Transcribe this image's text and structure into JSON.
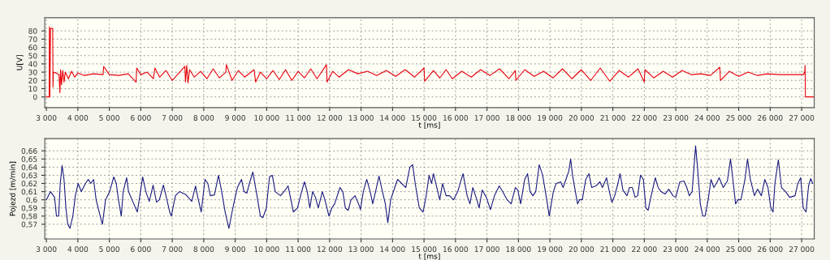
{
  "chart_data": [
    {
      "type": "line",
      "xlabel": "t [ms]",
      "ylabel": "U[V]",
      "grid": true,
      "line_style": "solid",
      "xlim": [
        2950,
        27400
      ],
      "ylim": [
        -13,
        96
      ],
      "xticks": [
        {
          "value": 3000,
          "label": "3 000"
        },
        {
          "value": 4000,
          "label": "4 000"
        },
        {
          "value": 5000,
          "label": "5 000"
        },
        {
          "value": 6000,
          "label": "6 000"
        },
        {
          "value": 7000,
          "label": "7 000"
        },
        {
          "value": 8000,
          "label": "8 000"
        },
        {
          "value": 9000,
          "label": "9 000"
        },
        {
          "value": 10000,
          "label": "10 000"
        },
        {
          "value": 11000,
          "label": "11 000"
        },
        {
          "value": 12000,
          "label": "12 000"
        },
        {
          "value": 13000,
          "label": "13 000"
        },
        {
          "value": 14000,
          "label": "14 000"
        },
        {
          "value": 15000,
          "label": "15 000"
        },
        {
          "value": 16000,
          "label": "16 000"
        },
        {
          "value": 17000,
          "label": "17 000"
        },
        {
          "value": 18000,
          "label": "18 000"
        },
        {
          "value": 19000,
          "label": "19 000"
        },
        {
          "value": 20000,
          "label": "20 000"
        },
        {
          "value": 21000,
          "label": "21 000"
        },
        {
          "value": 22000,
          "label": "22 000"
        },
        {
          "value": 23000,
          "label": "23 000"
        },
        {
          "value": 24000,
          "label": "24 000"
        },
        {
          "value": 25000,
          "label": "25 000"
        },
        {
          "value": 26000,
          "label": "26 000"
        },
        {
          "value": 27000,
          "label": "27 000"
        }
      ],
      "yticks": [
        0,
        10,
        20,
        30,
        40,
        50,
        60,
        70,
        80
      ],
      "series": [
        {
          "color": "#e8000b",
          "x": [
            3000,
            3090,
            3095,
            3110,
            3130,
            3200,
            3210,
            3220,
            3300,
            3400,
            3430,
            3450,
            3480,
            3520,
            3560,
            3600,
            3700,
            3800,
            3900,
            4000,
            4200,
            4500,
            4800,
            4820,
            5000,
            5300,
            5600,
            5850,
            5870,
            6000,
            6200,
            6400,
            6450,
            6600,
            6800,
            7000,
            7400,
            7420,
            7460,
            7500,
            7550,
            7700,
            7900,
            8100,
            8300,
            8500,
            8700,
            8720,
            8900,
            9100,
            9300,
            9600,
            9650,
            9800,
            10000,
            10200,
            10400,
            10600,
            10800,
            11000,
            11200,
            11400,
            11600,
            11900,
            11920,
            12100,
            12300,
            12600,
            12900,
            13200,
            13500,
            13800,
            14100,
            14400,
            14700,
            15000,
            15020,
            15300,
            15500,
            15700,
            15900,
            16200,
            16500,
            16800,
            17100,
            17400,
            17700,
            17900,
            17920,
            18200,
            18500,
            18800,
            19100,
            19400,
            19700,
            20000,
            20300,
            20600,
            20900,
            21200,
            21500,
            21800,
            22000,
            22020,
            22300,
            22600,
            22900,
            23200,
            23500,
            23800,
            24100,
            24400,
            24420,
            24700,
            25000,
            25300,
            25600,
            25900,
            26300,
            26700,
            27050,
            27100,
            27110,
            27120,
            27400
          ],
          "values": [
            0,
            0,
            85,
            0,
            83,
            83,
            12,
            30,
            29,
            27,
            5,
            33,
            15,
            32,
            18,
            30,
            22,
            31,
            24,
            29,
            26,
            28,
            27,
            37,
            27,
            26,
            28,
            18,
            35,
            27,
            30,
            22,
            35,
            24,
            32,
            20,
            37,
            18,
            38,
            17,
            33,
            24,
            31,
            22,
            34,
            23,
            30,
            39,
            20,
            32,
            24,
            33,
            18,
            30,
            22,
            32,
            21,
            33,
            20,
            31,
            23,
            34,
            22,
            39,
            18,
            31,
            24,
            33,
            28,
            31,
            26,
            32,
            25,
            33,
            24,
            35,
            19,
            32,
            23,
            33,
            22,
            31,
            24,
            33,
            26,
            34,
            22,
            32,
            20,
            33,
            25,
            31,
            23,
            34,
            22,
            33,
            20,
            35,
            19,
            32,
            24,
            34,
            18,
            33,
            23,
            31,
            24,
            32,
            27,
            28,
            26,
            36,
            20,
            31,
            25,
            30,
            26,
            28,
            27,
            27,
            27,
            30,
            38,
            0,
            0
          ]
        }
      ]
    },
    {
      "type": "line",
      "xlabel": "t [ms]",
      "ylabel": "Pojezd [m/min]",
      "grid": true,
      "line_style": "solid",
      "xlim": [
        2950,
        27400
      ],
      "ylim": [
        0.552,
        0.675
      ],
      "xticks": [
        {
          "value": 3000,
          "label": "3 000"
        },
        {
          "value": 4000,
          "label": "4 000"
        },
        {
          "value": 5000,
          "label": "5 000"
        },
        {
          "value": 6000,
          "label": "6 000"
        },
        {
          "value": 7000,
          "label": "7 000"
        },
        {
          "value": 8000,
          "label": "8 000"
        },
        {
          "value": 9000,
          "label": "9 000"
        },
        {
          "value": 10000,
          "label": "10 000"
        },
        {
          "value": 11000,
          "label": "11 000"
        },
        {
          "value": 12000,
          "label": "12 000"
        },
        {
          "value": 13000,
          "label": "13 000"
        },
        {
          "value": 14000,
          "label": "14 000"
        },
        {
          "value": 15000,
          "label": "15 000"
        },
        {
          "value": 16000,
          "label": "16 000"
        },
        {
          "value": 17000,
          "label": "17 000"
        },
        {
          "value": 18000,
          "label": "18 000"
        },
        {
          "value": 19000,
          "label": "19 000"
        },
        {
          "value": 20000,
          "label": "20 000"
        },
        {
          "value": 21000,
          "label": "21 000"
        },
        {
          "value": 22000,
          "label": "22 000"
        },
        {
          "value": 23000,
          "label": "23 000"
        },
        {
          "value": 24000,
          "label": "24 000"
        },
        {
          "value": 25000,
          "label": "25 000"
        },
        {
          "value": 26000,
          "label": "26 000"
        },
        {
          "value": 27000,
          "label": "27 000"
        }
      ],
      "yticks": [
        {
          "value": 0.57,
          "label": "0,57"
        },
        {
          "value": 0.58,
          "label": "0,58"
        },
        {
          "value": 0.59,
          "label": "0,59"
        },
        {
          "value": 0.6,
          "label": "0,6"
        },
        {
          "value": 0.61,
          "label": "0,61"
        },
        {
          "value": 0.62,
          "label": "0,62"
        },
        {
          "value": 0.63,
          "label": "0,63"
        },
        {
          "value": 0.64,
          "label": "0,64"
        },
        {
          "value": 0.65,
          "label": "0,65"
        },
        {
          "value": 0.66,
          "label": "0,66"
        }
      ],
      "series": [
        {
          "color": "#1a1a80",
          "x": [
            3000,
            3130,
            3260,
            3320,
            3390,
            3440,
            3500,
            3560,
            3620,
            3680,
            3750,
            3840,
            3920,
            4010,
            4110,
            4240,
            4330,
            4410,
            4500,
            4580,
            4710,
            4780,
            4880,
            5010,
            5140,
            5220,
            5290,
            5380,
            5440,
            5550,
            5610,
            5720,
            5890,
            5950,
            6060,
            6160,
            6270,
            6390,
            6500,
            6590,
            6720,
            6800,
            6920,
            6970,
            7100,
            7230,
            7440,
            7620,
            7740,
            7800,
            7920,
            8040,
            8130,
            8210,
            8340,
            8470,
            8570,
            8680,
            8800,
            8900,
            8980,
            9070,
            9200,
            9280,
            9370,
            9450,
            9560,
            9670,
            9800,
            9880,
            9990,
            10090,
            10180,
            10270,
            10440,
            10610,
            10680,
            10770,
            10850,
            10980,
            11110,
            11200,
            11290,
            11370,
            11460,
            11550,
            11640,
            11770,
            11850,
            11980,
            12070,
            12160,
            12330,
            12420,
            12500,
            12590,
            12680,
            12810,
            12940,
            12980,
            13070,
            13180,
            13290,
            13370,
            13460,
            13570,
            13650,
            13770,
            13850,
            13940,
            14070,
            14160,
            14290,
            14420,
            14550,
            14640,
            14720,
            14850,
            14970,
            15070,
            15160,
            15240,
            15300,
            15420,
            15500,
            15590,
            15700,
            15810,
            15940,
            16070,
            16240,
            16370,
            16460,
            16550,
            16680,
            16750,
            16850,
            16980,
            17110,
            17240,
            17390,
            17500,
            17640,
            17770,
            17900,
            17980,
            18070,
            18200,
            18290,
            18370,
            18460,
            18550,
            18660,
            18770,
            18900,
            18980,
            19110,
            19200,
            19340,
            19420,
            19510,
            19600,
            19660,
            19720,
            19810,
            19880,
            19940,
            20030,
            20140,
            20240,
            20330,
            20460,
            20590,
            20670,
            20800,
            20890,
            20970,
            21060,
            21150,
            21230,
            21320,
            21450,
            21530,
            21620,
            21710,
            21790,
            21880,
            21970,
            22050,
            22120,
            22220,
            22350,
            22440,
            22530,
            22660,
            22780,
            22910,
            23000,
            23130,
            23260,
            23350,
            23430,
            23520,
            23630,
            23690,
            23780,
            23860,
            23930,
            24030,
            24120,
            24210,
            24290,
            24380,
            24510,
            24640,
            24740,
            24830,
            24900,
            24980,
            25070,
            25200,
            25280,
            25370,
            25500,
            25600,
            25720,
            25830,
            25930,
            26020,
            26090,
            26150,
            26260,
            26360,
            26490,
            26620,
            26790,
            26880,
            26970,
            27050,
            27140,
            27220,
            27290,
            27350
          ],
          "values": [
            0.6,
            0.61,
            0.603,
            0.58,
            0.58,
            0.62,
            0.642,
            0.625,
            0.59,
            0.57,
            0.565,
            0.58,
            0.605,
            0.62,
            0.61,
            0.62,
            0.625,
            0.62,
            0.625,
            0.6,
            0.58,
            0.57,
            0.6,
            0.61,
            0.628,
            0.62,
            0.6,
            0.58,
            0.61,
            0.627,
            0.61,
            0.6,
            0.585,
            0.6,
            0.628,
            0.61,
            0.598,
            0.618,
            0.597,
            0.6,
            0.618,
            0.605,
            0.585,
            0.58,
            0.605,
            0.61,
            0.606,
            0.598,
            0.617,
            0.605,
            0.585,
            0.625,
            0.62,
            0.605,
            0.606,
            0.63,
            0.61,
            0.585,
            0.565,
            0.585,
            0.6,
            0.615,
            0.625,
            0.61,
            0.608,
            0.62,
            0.634,
            0.61,
            0.58,
            0.578,
            0.59,
            0.628,
            0.63,
            0.61,
            0.605,
            0.613,
            0.617,
            0.6,
            0.585,
            0.59,
            0.61,
            0.622,
            0.61,
            0.59,
            0.61,
            0.603,
            0.59,
            0.61,
            0.6,
            0.58,
            0.59,
            0.595,
            0.615,
            0.61,
            0.59,
            0.587,
            0.6,
            0.605,
            0.593,
            0.588,
            0.61,
            0.625,
            0.61,
            0.595,
            0.61,
            0.629,
            0.615,
            0.595,
            0.572,
            0.6,
            0.615,
            0.625,
            0.62,
            0.615,
            0.64,
            0.643,
            0.62,
            0.59,
            0.585,
            0.605,
            0.63,
            0.62,
            0.632,
            0.613,
            0.6,
            0.62,
            0.605,
            0.605,
            0.6,
            0.61,
            0.632,
            0.605,
            0.595,
            0.615,
            0.6,
            0.59,
            0.612,
            0.603,
            0.588,
            0.605,
            0.617,
            0.61,
            0.6,
            0.595,
            0.615,
            0.612,
            0.595,
            0.625,
            0.632,
            0.61,
            0.605,
            0.61,
            0.643,
            0.63,
            0.6,
            0.58,
            0.61,
            0.62,
            0.622,
            0.615,
            0.625,
            0.635,
            0.65,
            0.63,
            0.61,
            0.595,
            0.6,
            0.6,
            0.625,
            0.632,
            0.615,
            0.617,
            0.622,
            0.615,
            0.627,
            0.61,
            0.597,
            0.605,
            0.618,
            0.632,
            0.612,
            0.605,
            0.615,
            0.615,
            0.603,
            0.605,
            0.63,
            0.625,
            0.59,
            0.587,
            0.605,
            0.627,
            0.615,
            0.61,
            0.607,
            0.613,
            0.605,
            0.603,
            0.622,
            0.623,
            0.615,
            0.605,
            0.61,
            0.666,
            0.64,
            0.595,
            0.58,
            0.58,
            0.6,
            0.625,
            0.615,
            0.62,
            0.627,
            0.615,
            0.623,
            0.65,
            0.62,
            0.595,
            0.6,
            0.6,
            0.625,
            0.65,
            0.625,
            0.605,
            0.613,
            0.605,
            0.625,
            0.615,
            0.59,
            0.585,
            0.62,
            0.649,
            0.615,
            0.61,
            0.603,
            0.605,
            0.62,
            0.627,
            0.59,
            0.585,
            0.617,
            0.626,
            0.62
          ]
        }
      ]
    }
  ]
}
